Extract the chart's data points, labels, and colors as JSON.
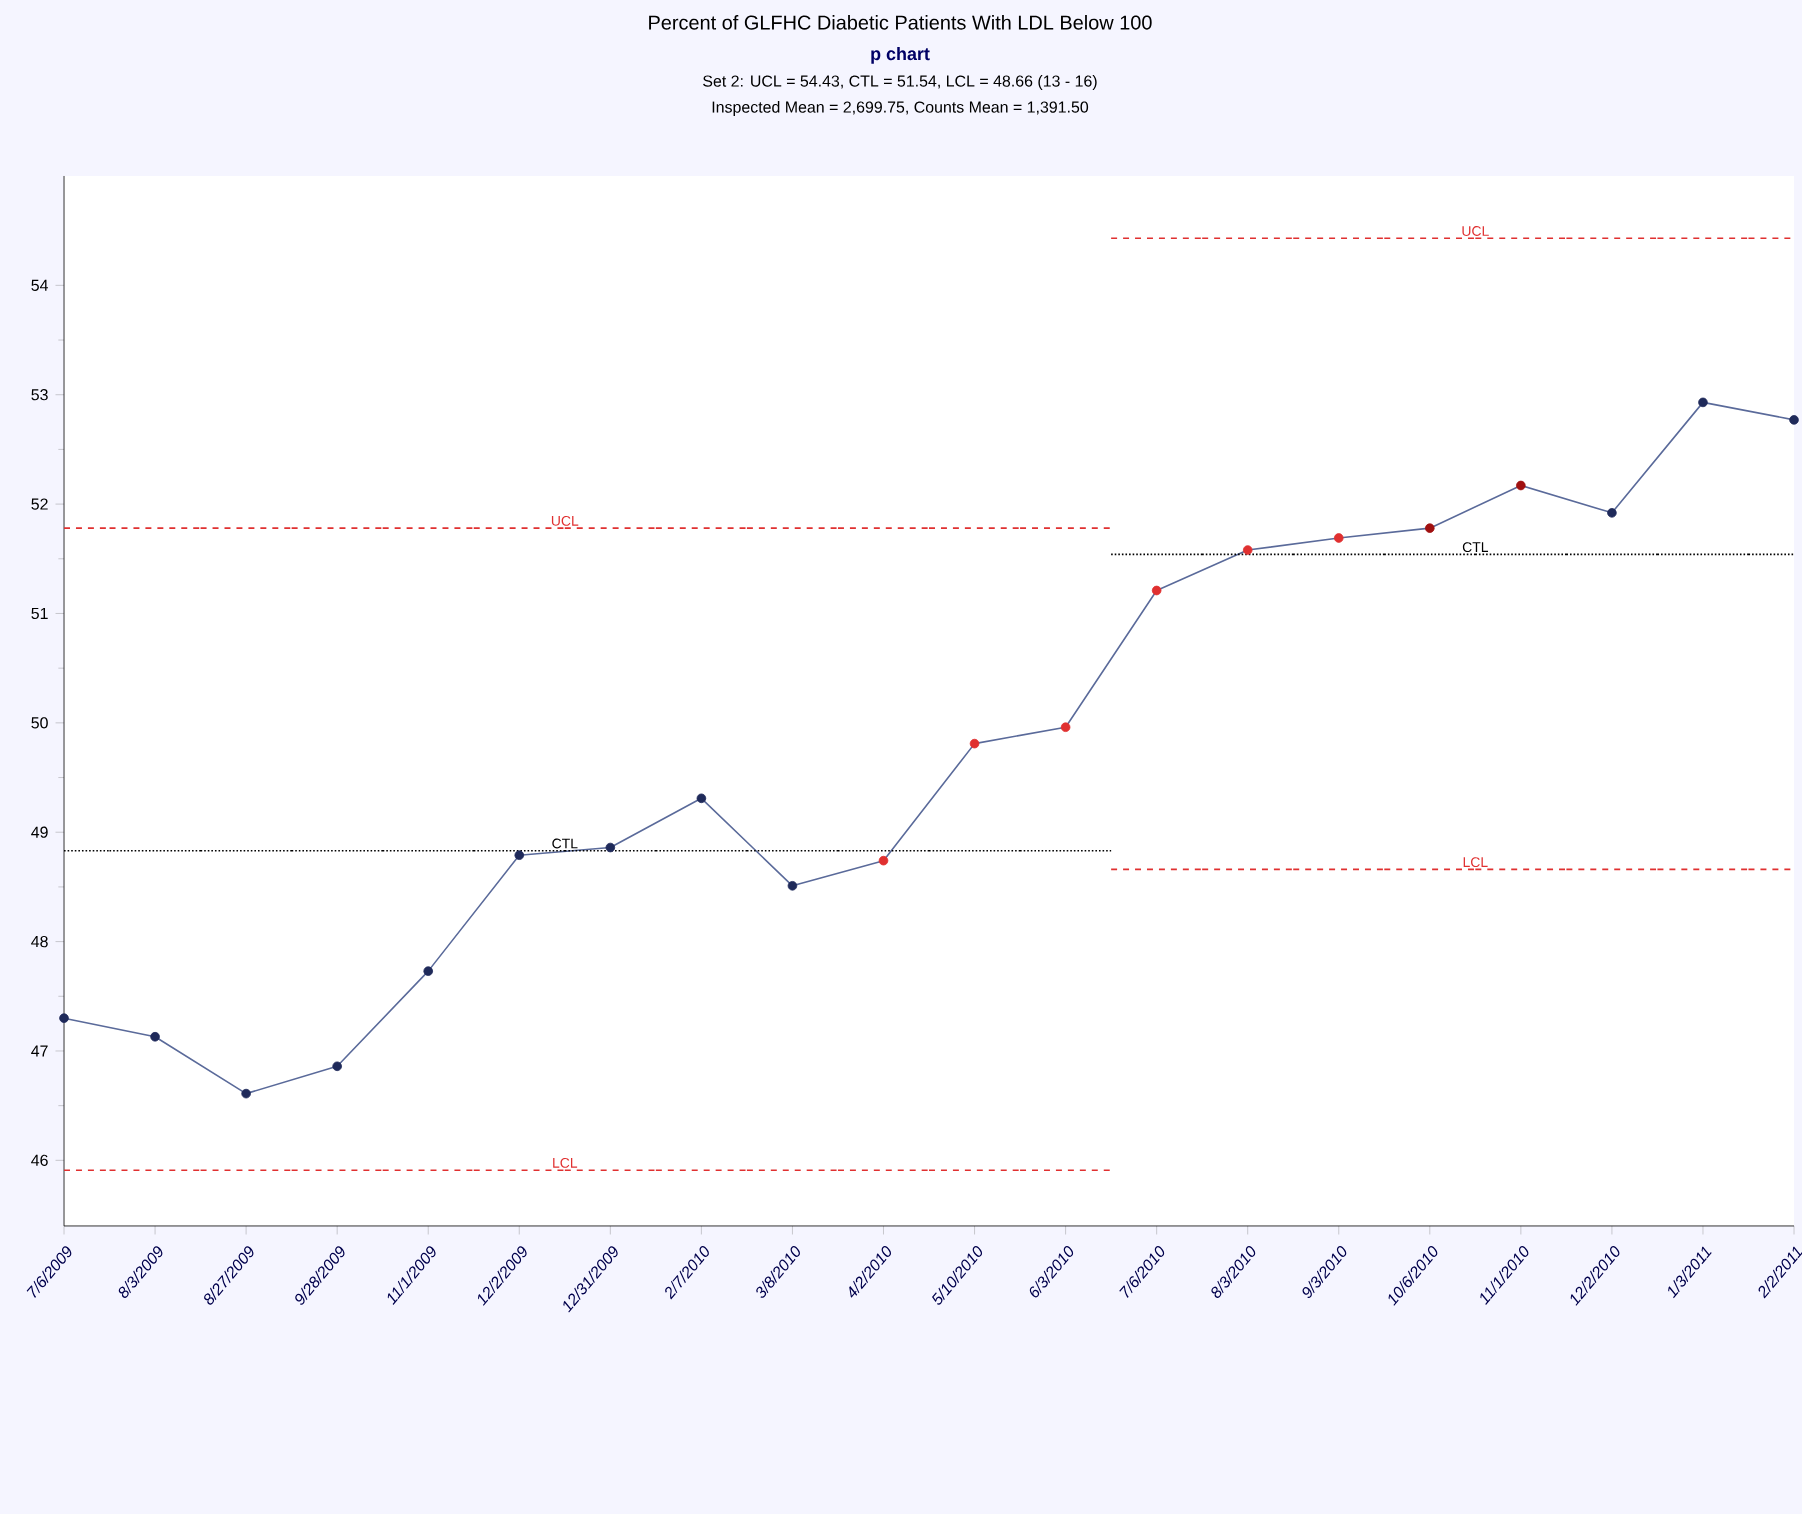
{
  "chart_data": {
    "type": "line",
    "title": "Percent of GLFHC Diabetic Patients With  LDL Below 100",
    "subtitle": "p chart",
    "annotations": [
      "Set 2: UCL = 54.43, CTL = 51.54, LCL = 48.66 (13 - 16)",
      "Inspected Mean = 2,699.75, Counts Mean = 1,391.50"
    ],
    "categories": [
      "7/6/2009",
      "8/3/2009",
      "8/27/2009",
      "9/28/2009",
      "11/1/2009",
      "12/2/2009",
      "12/31/2009",
      "2/7/2010",
      "3/8/2010",
      "4/2/2010",
      "5/10/2010",
      "6/3/2010",
      "7/6/2010",
      "8/3/2010",
      "9/3/2010",
      "10/6/2010",
      "11/1/2010",
      "12/2/2010",
      "1/3/2011",
      "2/2/2011"
    ],
    "series": [
      {
        "color": "#5a6a9a",
        "values": [
          47.3,
          47.13,
          46.61,
          46.86,
          47.73,
          48.79,
          48.86,
          49.31,
          48.51,
          48.74,
          49.81,
          49.96,
          51.21,
          51.58,
          51.69,
          51.78,
          52.17,
          51.92,
          52.93,
          52.77
        ],
        "colors": [
          "#1f2a5a",
          "#1f2a5a",
          "#1f2a5a",
          "#1f2a5a",
          "#1f2a5a",
          "#1f2a5a",
          "#1f2a5a",
          "#1f2a5a",
          "#1f2a5a",
          "#e03030",
          "#e03030",
          "#e03030",
          "#e03030",
          "#e03030",
          "#e03030",
          "#a01010",
          "#a01010",
          "#1f2a5a",
          "#1f2a5a",
          "#1f2a5a"
        ]
      },
      {
        "name": "UCL",
        "type": "step",
        "color": "#e03030",
        "line_style": "dashed",
        "marker": "none",
        "values": [
          51.78,
          51.78,
          51.78,
          51.78,
          51.78,
          51.78,
          51.78,
          51.78,
          51.78,
          51.78,
          51.78,
          51.78,
          54.43,
          54.43,
          54.43,
          54.43,
          54.43,
          54.43,
          54.43,
          54.43
        ]
      },
      {
        "name": "CTL",
        "type": "step",
        "color": "#000000",
        "line_style": "dotted",
        "marker": "none",
        "values": [
          48.83,
          48.83,
          48.83,
          48.83,
          48.83,
          48.83,
          48.83,
          48.83,
          48.83,
          48.83,
          48.83,
          48.83,
          51.54,
          51.54,
          51.54,
          51.54,
          51.54,
          51.54,
          51.54,
          51.54
        ]
      },
      {
        "name": "LCL",
        "type": "step",
        "color": "#e03030",
        "line_style": "dashed",
        "marker": "none",
        "values": [
          45.91,
          45.91,
          45.91,
          45.91,
          45.91,
          45.91,
          45.91,
          45.91,
          45.91,
          45.91,
          45.91,
          45.91,
          48.66,
          48.66,
          48.66,
          48.66,
          48.66,
          48.66,
          48.66,
          48.66
        ]
      }
    ],
    "ylim": [
      45.4,
      55
    ],
    "yticks": [
      46,
      47,
      48,
      49,
      50,
      51,
      52,
      53,
      54
    ],
    "grid": false,
    "marker": "circle",
    "line_style": "solid"
  }
}
